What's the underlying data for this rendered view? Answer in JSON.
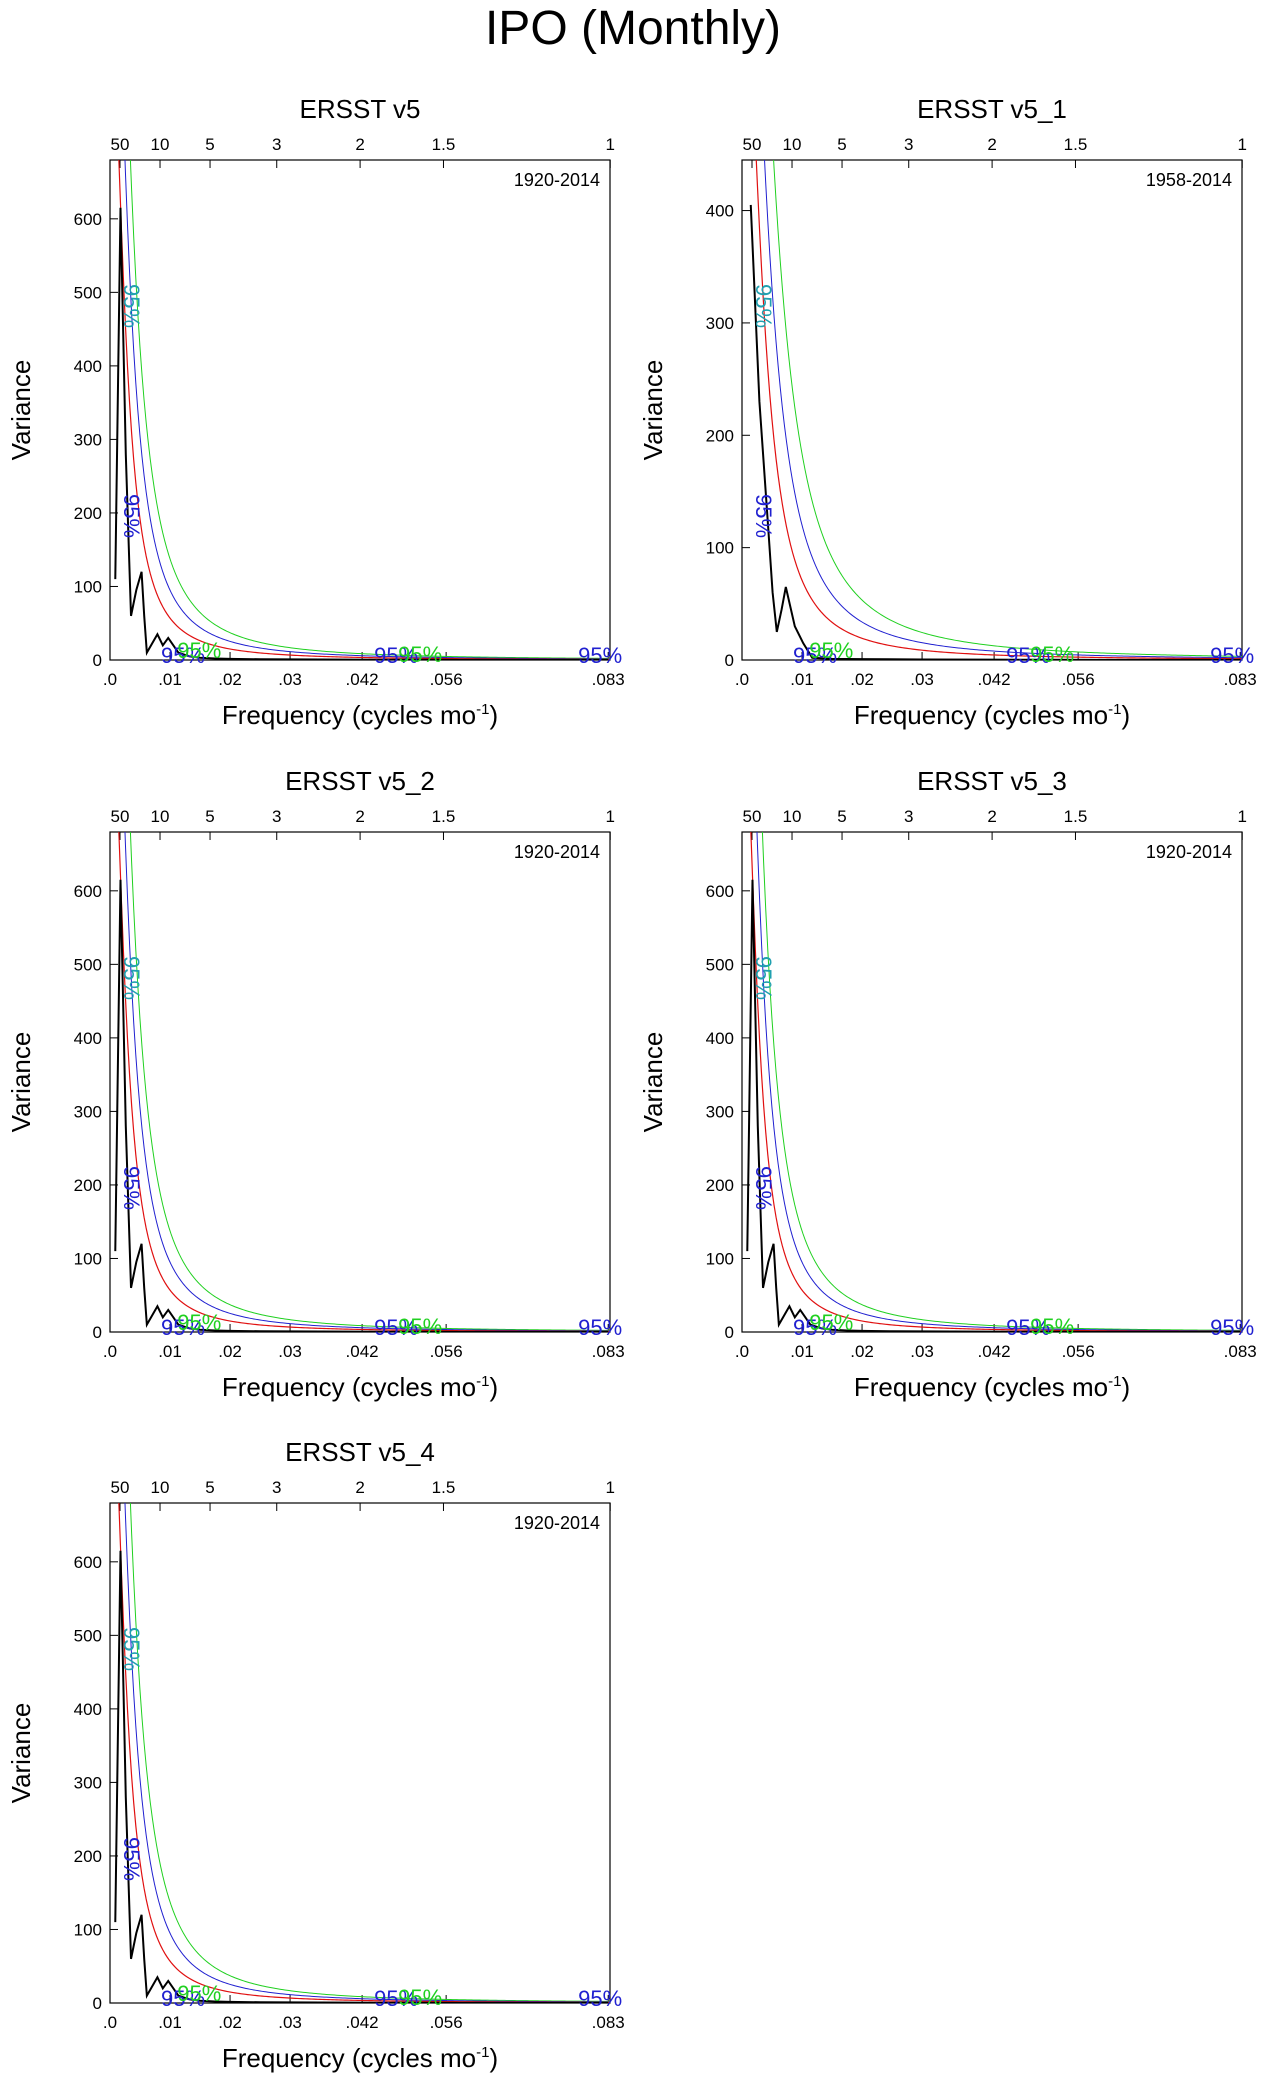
{
  "colors": {
    "spectrum": "#000000",
    "red_noise": "#e01010",
    "conf_95": "#2020d0",
    "conf_99": "#20d020",
    "conf_alt": "#20a0b0"
  },
  "chart_data": {
    "title": "IPO (Monthly)",
    "type": "line",
    "xlabel": "Frequency (cycles mo",
    "xlabel_sup": "-1",
    "xlabel_close": ")",
    "ylabel": "Variance",
    "xlim": [
      0,
      0.0833
    ],
    "x_ticks": [
      0,
      0.01,
      0.02,
      0.03,
      0.042,
      0.056,
      0.083
    ],
    "x_tick_labels": [
      ".0",
      ".01",
      ".02",
      ".03",
      ".042",
      ".056",
      ".083"
    ],
    "period_ticks": [
      50,
      10,
      5,
      3,
      2,
      1.5,
      1
    ],
    "period_tick_labels": [
      "50",
      "10",
      "5",
      "3",
      "2",
      "1.5",
      "1"
    ],
    "sig_label": "95%",
    "panels": [
      {
        "name": "ERSST v5",
        "period": "1920-2014",
        "ylim": [
          0,
          680
        ],
        "y_ticks": [
          0,
          100,
          200,
          300,
          400,
          500,
          600
        ],
        "y_tick_labels": [
          "0",
          "100",
          "200",
          "300",
          "400",
          "500",
          "600"
        ],
        "spectrum": {
          "x": [
            0.00088,
            0.00175,
            0.00263,
            0.0035,
            0.00438,
            0.00526,
            0.0057,
            0.00614,
            0.0079,
            0.0088,
            0.0097,
            0.0114,
            0.0132,
            0.015,
            0.0175,
            0.02,
            0.025,
            0.03,
            0.04,
            0.05,
            0.06,
            0.07,
            0.083
          ],
          "y": [
            110,
            615,
            280,
            60,
            95,
            120,
            60,
            10,
            35,
            20,
            30,
            10,
            5,
            3,
            2,
            1.5,
            1,
            0.8,
            0.5,
            0.3,
            0.2,
            0.1,
            0.1
          ]
        },
        "red_noise": {
          "peak": 900,
          "scale": 0.0026
        },
        "conf_95": {
          "peak": 1150,
          "scale": 0.003
        },
        "conf_99": {
          "peak": 1400,
          "scale": 0.0033
        }
      },
      {
        "name": "ERSST v5_1",
        "period": "1958-2014",
        "ylim": [
          0,
          445
        ],
        "y_ticks": [
          0,
          100,
          200,
          300,
          400
        ],
        "y_tick_labels": [
          "0",
          "100",
          "200",
          "300",
          "400"
        ],
        "spectrum": {
          "x": [
            0.00146,
            0.0029,
            0.0044,
            0.0051,
            0.0058,
            0.0066,
            0.0073,
            0.0088,
            0.0102,
            0.0117,
            0.015,
            0.02,
            0.03,
            0.04,
            0.05,
            0.06,
            0.083
          ],
          "y": [
            405,
            230,
            115,
            60,
            25,
            45,
            65,
            30,
            15,
            2,
            1,
            0.8,
            0.5,
            0.3,
            0.2,
            0.1,
            0.1
          ]
        },
        "red_noise": {
          "peak": 650,
          "scale": 0.0035
        },
        "conf_95": {
          "peak": 800,
          "scale": 0.0042
        },
        "conf_99": {
          "peak": 980,
          "scale": 0.0048
        }
      },
      {
        "name": "ERSST v5_2",
        "period": "1920-2014",
        "ylim": [
          0,
          680
        ],
        "y_ticks": [
          0,
          100,
          200,
          300,
          400,
          500,
          600
        ],
        "y_tick_labels": [
          "0",
          "100",
          "200",
          "300",
          "400",
          "500",
          "600"
        ],
        "spectrum": {
          "x": [
            0.00088,
            0.00175,
            0.00263,
            0.0035,
            0.00438,
            0.00526,
            0.0057,
            0.00614,
            0.0079,
            0.0088,
            0.0097,
            0.0114,
            0.0132,
            0.015,
            0.0175,
            0.02,
            0.025,
            0.03,
            0.04,
            0.05,
            0.06,
            0.07,
            0.083
          ],
          "y": [
            110,
            615,
            280,
            60,
            95,
            120,
            60,
            10,
            35,
            20,
            30,
            10,
            5,
            3,
            2,
            1.5,
            1,
            0.8,
            0.5,
            0.3,
            0.2,
            0.1,
            0.1
          ]
        },
        "red_noise": {
          "peak": 900,
          "scale": 0.0026
        },
        "conf_95": {
          "peak": 1150,
          "scale": 0.003
        },
        "conf_99": {
          "peak": 1400,
          "scale": 0.0033
        }
      },
      {
        "name": "ERSST v5_3",
        "period": "1920-2014",
        "ylim": [
          0,
          680
        ],
        "y_ticks": [
          0,
          100,
          200,
          300,
          400,
          500,
          600
        ],
        "y_tick_labels": [
          "0",
          "100",
          "200",
          "300",
          "400",
          "500",
          "600"
        ],
        "spectrum": {
          "x": [
            0.00088,
            0.00175,
            0.00263,
            0.0035,
            0.00438,
            0.00526,
            0.0057,
            0.00614,
            0.0079,
            0.0088,
            0.0097,
            0.0114,
            0.0132,
            0.015,
            0.0175,
            0.02,
            0.025,
            0.03,
            0.04,
            0.05,
            0.06,
            0.07,
            0.083
          ],
          "y": [
            110,
            615,
            280,
            60,
            95,
            120,
            60,
            10,
            35,
            20,
            30,
            10,
            5,
            3,
            2,
            1.5,
            1,
            0.8,
            0.5,
            0.3,
            0.2,
            0.1,
            0.1
          ]
        },
        "red_noise": {
          "peak": 900,
          "scale": 0.0026
        },
        "conf_95": {
          "peak": 1150,
          "scale": 0.003
        },
        "conf_99": {
          "peak": 1400,
          "scale": 0.0033
        }
      },
      {
        "name": "ERSST v5_4",
        "period": "1920-2014",
        "ylim": [
          0,
          680
        ],
        "y_ticks": [
          0,
          100,
          200,
          300,
          400,
          500,
          600
        ],
        "y_tick_labels": [
          "0",
          "100",
          "200",
          "300",
          "400",
          "500",
          "600"
        ],
        "spectrum": {
          "x": [
            0.00088,
            0.00175,
            0.00263,
            0.0035,
            0.00438,
            0.00526,
            0.0057,
            0.00614,
            0.0079,
            0.0088,
            0.0097,
            0.0114,
            0.0132,
            0.015,
            0.0175,
            0.02,
            0.025,
            0.03,
            0.04,
            0.05,
            0.06,
            0.07,
            0.083
          ],
          "y": [
            110,
            615,
            280,
            60,
            95,
            120,
            60,
            10,
            35,
            20,
            30,
            10,
            5,
            3,
            2,
            1.5,
            1,
            0.8,
            0.5,
            0.3,
            0.2,
            0.1,
            0.1
          ]
        },
        "red_noise": {
          "peak": 900,
          "scale": 0.0026
        },
        "conf_95": {
          "peak": 1150,
          "scale": 0.003
        },
        "conf_99": {
          "peak": 1400,
          "scale": 0.0033
        }
      }
    ]
  }
}
